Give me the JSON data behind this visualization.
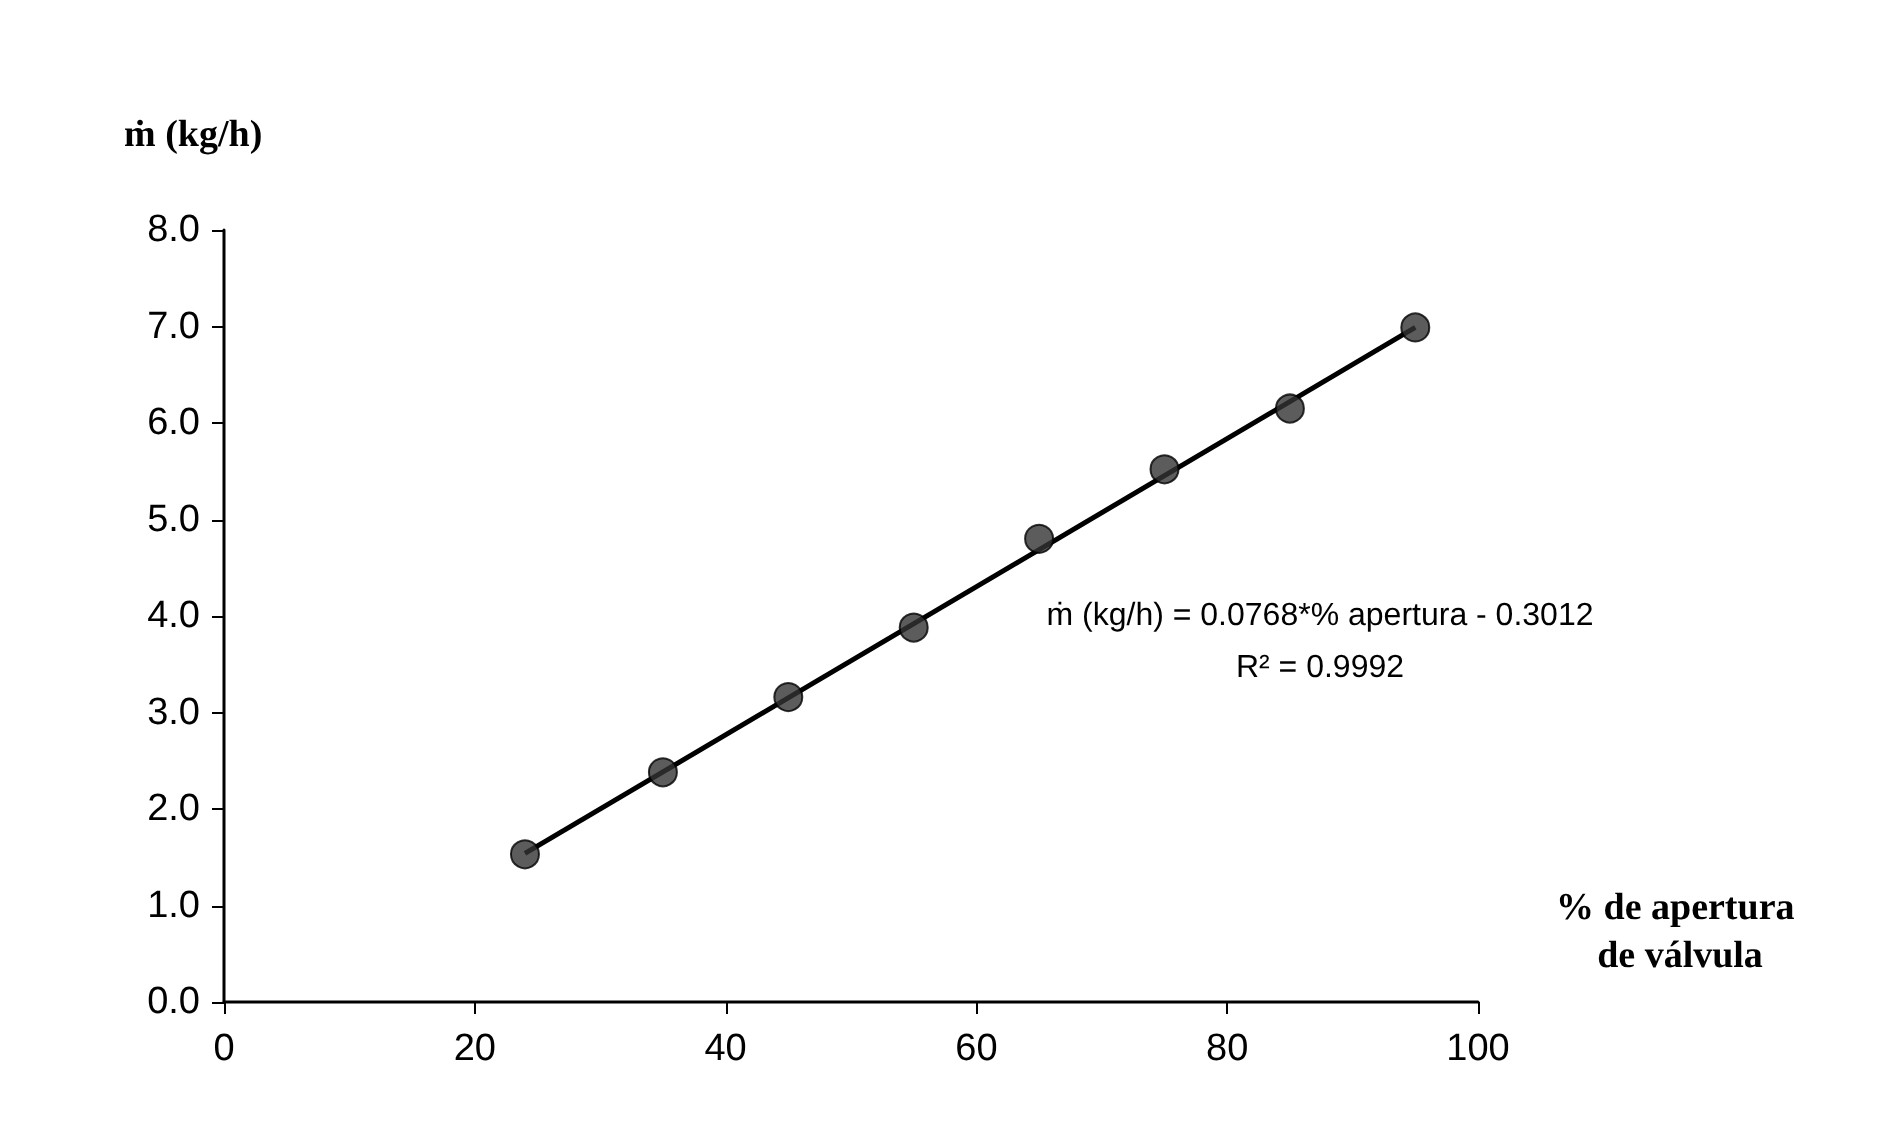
{
  "chart_data": {
    "type": "scatter",
    "ylabel": "ṁ (kg/h)",
    "xlabel": "% de apertura de válvula",
    "annotations": [
      "ṁ (kg/h) = 0.0768*% apertura - 0.3012",
      "R² = 0.9992"
    ],
    "x": [
      24,
      35,
      45,
      55,
      65,
      75,
      85,
      95
    ],
    "series": [
      {
        "color": "#333333",
        "values": [
          1.53,
          2.38,
          3.16,
          3.88,
          4.8,
          5.52,
          6.15,
          6.99
        ]
      },
      {
        "type": "line",
        "color": "#000000",
        "x": [
          24,
          95
        ],
        "values": [
          1.54,
          6.99
        ],
        "marker": "none"
      }
    ],
    "marker": "circle",
    "line_style": "solid",
    "xlim": [
      0,
      100
    ],
    "xticks": [
      0,
      20,
      40,
      60,
      80,
      100
    ],
    "ylim": [
      0,
      8
    ],
    "yticks": [
      {
        "value": 0,
        "label": "0.0"
      },
      {
        "value": 1,
        "label": "1.0"
      },
      {
        "value": 2,
        "label": "2.0"
      },
      {
        "value": 3,
        "label": "3.0"
      },
      {
        "value": 4,
        "label": "4.0"
      },
      {
        "value": 5,
        "label": "5.0"
      },
      {
        "value": 6,
        "label": "6.0"
      },
      {
        "value": 7,
        "label": "7.0"
      },
      {
        "value": 8,
        "label": "8.0"
      }
    ],
    "grid": false
  }
}
